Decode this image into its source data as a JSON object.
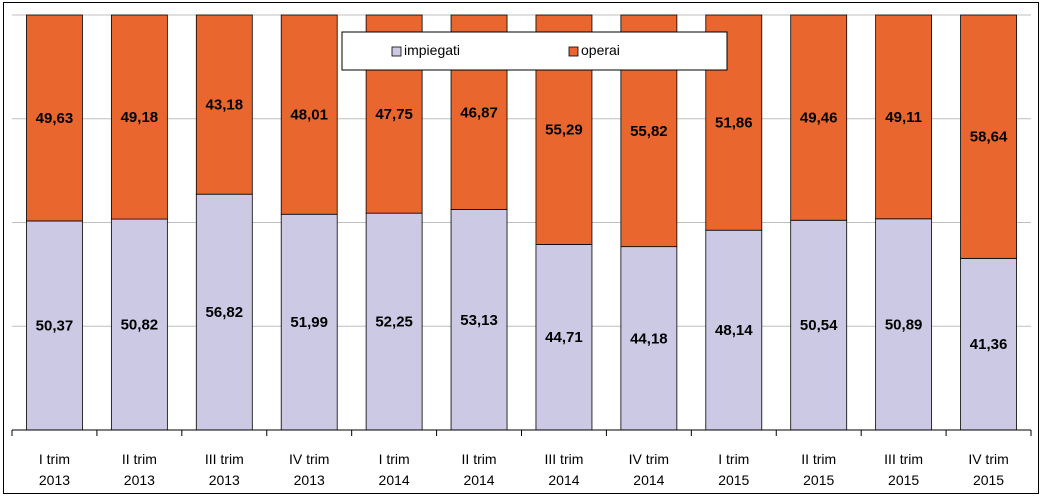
{
  "chart_data": {
    "type": "bar",
    "stacked": true,
    "percent_stacked": true,
    "title": "",
    "xlabel": "",
    "ylabel": "",
    "ylim": [
      0,
      100
    ],
    "grid": true,
    "legend_position": "top",
    "categories": [
      [
        "I trim",
        "2013"
      ],
      [
        "II trim",
        "2013"
      ],
      [
        "III trim",
        "2013"
      ],
      [
        "IV trim",
        "2013"
      ],
      [
        "I trim",
        "2014"
      ],
      [
        "II trim",
        "2014"
      ],
      [
        "III trim",
        "2014"
      ],
      [
        "IV trim",
        "2014"
      ],
      [
        "I trim",
        "2015"
      ],
      [
        "II trim",
        "2015"
      ],
      [
        "III trim",
        "2015"
      ],
      [
        "IV trim",
        "2015"
      ]
    ],
    "series": [
      {
        "name": "impiegati",
        "color": "#ccc9e4",
        "values": [
          50.37,
          50.82,
          56.82,
          51.99,
          52.25,
          53.13,
          44.71,
          44.18,
          48.14,
          50.54,
          50.89,
          41.36
        ],
        "labels": [
          "50,37",
          "50,82",
          "56,82",
          "51,99",
          "52,25",
          "53,13",
          "44,71",
          "44,18",
          "48,14",
          "50,54",
          "50,89",
          "41,36"
        ]
      },
      {
        "name": "operai",
        "color": "#e9662f",
        "values": [
          49.63,
          49.18,
          43.18,
          48.01,
          47.75,
          46.87,
          55.29,
          55.82,
          51.86,
          49.46,
          49.11,
          58.64
        ],
        "labels": [
          "49,63",
          "49,18",
          "43,18",
          "48,01",
          "47,75",
          "46,87",
          "55,29",
          "55,82",
          "51,86",
          "49,46",
          "49,11",
          "58,64"
        ]
      }
    ]
  }
}
